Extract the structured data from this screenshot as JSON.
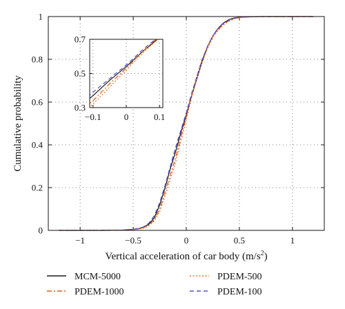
{
  "chart_data": {
    "type": "line",
    "xlabel": "Vertical acceleration of car body (m/s",
    "xlabel_sup": "2",
    "xlabel_end": ")",
    "ylabel": "Cumulative probability",
    "xlim": [
      -1.3,
      1.3
    ],
    "ylim": [
      0,
      1
    ],
    "xticks": [
      -1,
      -0.5,
      0,
      0.5,
      1
    ],
    "xtick_labels": [
      "−1",
      "−0.5",
      "0",
      "0.5",
      "1"
    ],
    "yticks": [
      0,
      0.2,
      0.4,
      0.6,
      0.8,
      1
    ],
    "ytick_labels": [
      "0",
      "0.2",
      "0.4",
      "0.6",
      "0.8",
      "1"
    ],
    "grid": true,
    "legend_placement": "bottom",
    "series": [
      {
        "name": "MCM-5000",
        "color": "#1a1a1a",
        "dash": "solid",
        "x": [
          -1.2,
          -0.8,
          -0.6,
          -0.5,
          -0.45,
          -0.4,
          -0.35,
          -0.3,
          -0.25,
          -0.2,
          -0.15,
          -0.1,
          -0.05,
          0,
          0.05,
          0.1,
          0.15,
          0.2,
          0.25,
          0.3,
          0.35,
          0.4,
          0.45,
          0.5,
          0.6,
          0.7,
          0.8,
          1.0,
          1.2
        ],
        "y": [
          0,
          0,
          0.001,
          0.005,
          0.008,
          0.015,
          0.03,
          0.06,
          0.12,
          0.2,
          0.29,
          0.37,
          0.46,
          0.54,
          0.63,
          0.71,
          0.79,
          0.86,
          0.91,
          0.945,
          0.97,
          0.985,
          0.993,
          0.997,
          0.999,
          1,
          1,
          1,
          1
        ]
      },
      {
        "name": "PDEM-1000",
        "color": "#d95f0e",
        "dash": "dashdot",
        "x": [
          -1.2,
          -0.8,
          -0.6,
          -0.5,
          -0.45,
          -0.4,
          -0.35,
          -0.3,
          -0.25,
          -0.2,
          -0.15,
          -0.1,
          -0.05,
          0,
          0.05,
          0.1,
          0.15,
          0.2,
          0.25,
          0.3,
          0.35,
          0.4,
          0.45,
          0.5,
          0.6,
          0.7,
          0.8,
          1.0,
          1.2
        ],
        "y": [
          0,
          0,
          0.001,
          0.004,
          0.007,
          0.013,
          0.026,
          0.05,
          0.1,
          0.18,
          0.26,
          0.34,
          0.44,
          0.53,
          0.63,
          0.72,
          0.8,
          0.86,
          0.91,
          0.94,
          0.965,
          0.98,
          0.99,
          0.996,
          0.999,
          1,
          1,
          1,
          1
        ]
      },
      {
        "name": "PDEM-500",
        "color": "#e8732a",
        "dash": "dotted",
        "x": [
          -1.2,
          -0.8,
          -0.6,
          -0.5,
          -0.45,
          -0.4,
          -0.35,
          -0.3,
          -0.25,
          -0.2,
          -0.15,
          -0.1,
          -0.05,
          0,
          0.05,
          0.1,
          0.15,
          0.2,
          0.25,
          0.3,
          0.35,
          0.4,
          0.45,
          0.5,
          0.6,
          0.7,
          0.8,
          1.0,
          1.2
        ],
        "y": [
          0,
          0,
          0.001,
          0.003,
          0.006,
          0.011,
          0.022,
          0.045,
          0.09,
          0.16,
          0.24,
          0.32,
          0.42,
          0.52,
          0.62,
          0.71,
          0.79,
          0.85,
          0.9,
          0.935,
          0.96,
          0.978,
          0.989,
          0.995,
          0.999,
          1,
          1,
          1,
          1
        ]
      },
      {
        "name": "PDEM-100",
        "color": "#5a4fcf",
        "dash": "dashed",
        "x": [
          -1.2,
          -0.8,
          -0.6,
          -0.5,
          -0.45,
          -0.4,
          -0.35,
          -0.3,
          -0.25,
          -0.2,
          -0.15,
          -0.1,
          -0.05,
          0,
          0.05,
          0.1,
          0.15,
          0.2,
          0.25,
          0.3,
          0.35,
          0.4,
          0.45,
          0.5,
          0.6,
          0.7,
          0.8,
          1.0,
          1.2
        ],
        "y": [
          0,
          0,
          0.001,
          0.005,
          0.009,
          0.017,
          0.035,
          0.07,
          0.13,
          0.21,
          0.3,
          0.39,
          0.47,
          0.55,
          0.64,
          0.72,
          0.8,
          0.86,
          0.91,
          0.945,
          0.968,
          0.983,
          0.992,
          0.997,
          0.999,
          1,
          1,
          1,
          1
        ]
      }
    ],
    "inset": {
      "xlim": [
        -0.11,
        0.11
      ],
      "ylim": [
        0.3,
        0.7
      ],
      "xticks": [
        -0.1,
        0,
        0.1
      ],
      "xtick_labels": [
        "−0.1",
        "0",
        "0.1"
      ],
      "yticks": [
        0.3,
        0.5,
        0.7
      ],
      "ytick_labels": [
        "0.3",
        "0.5",
        "0.7"
      ]
    }
  }
}
